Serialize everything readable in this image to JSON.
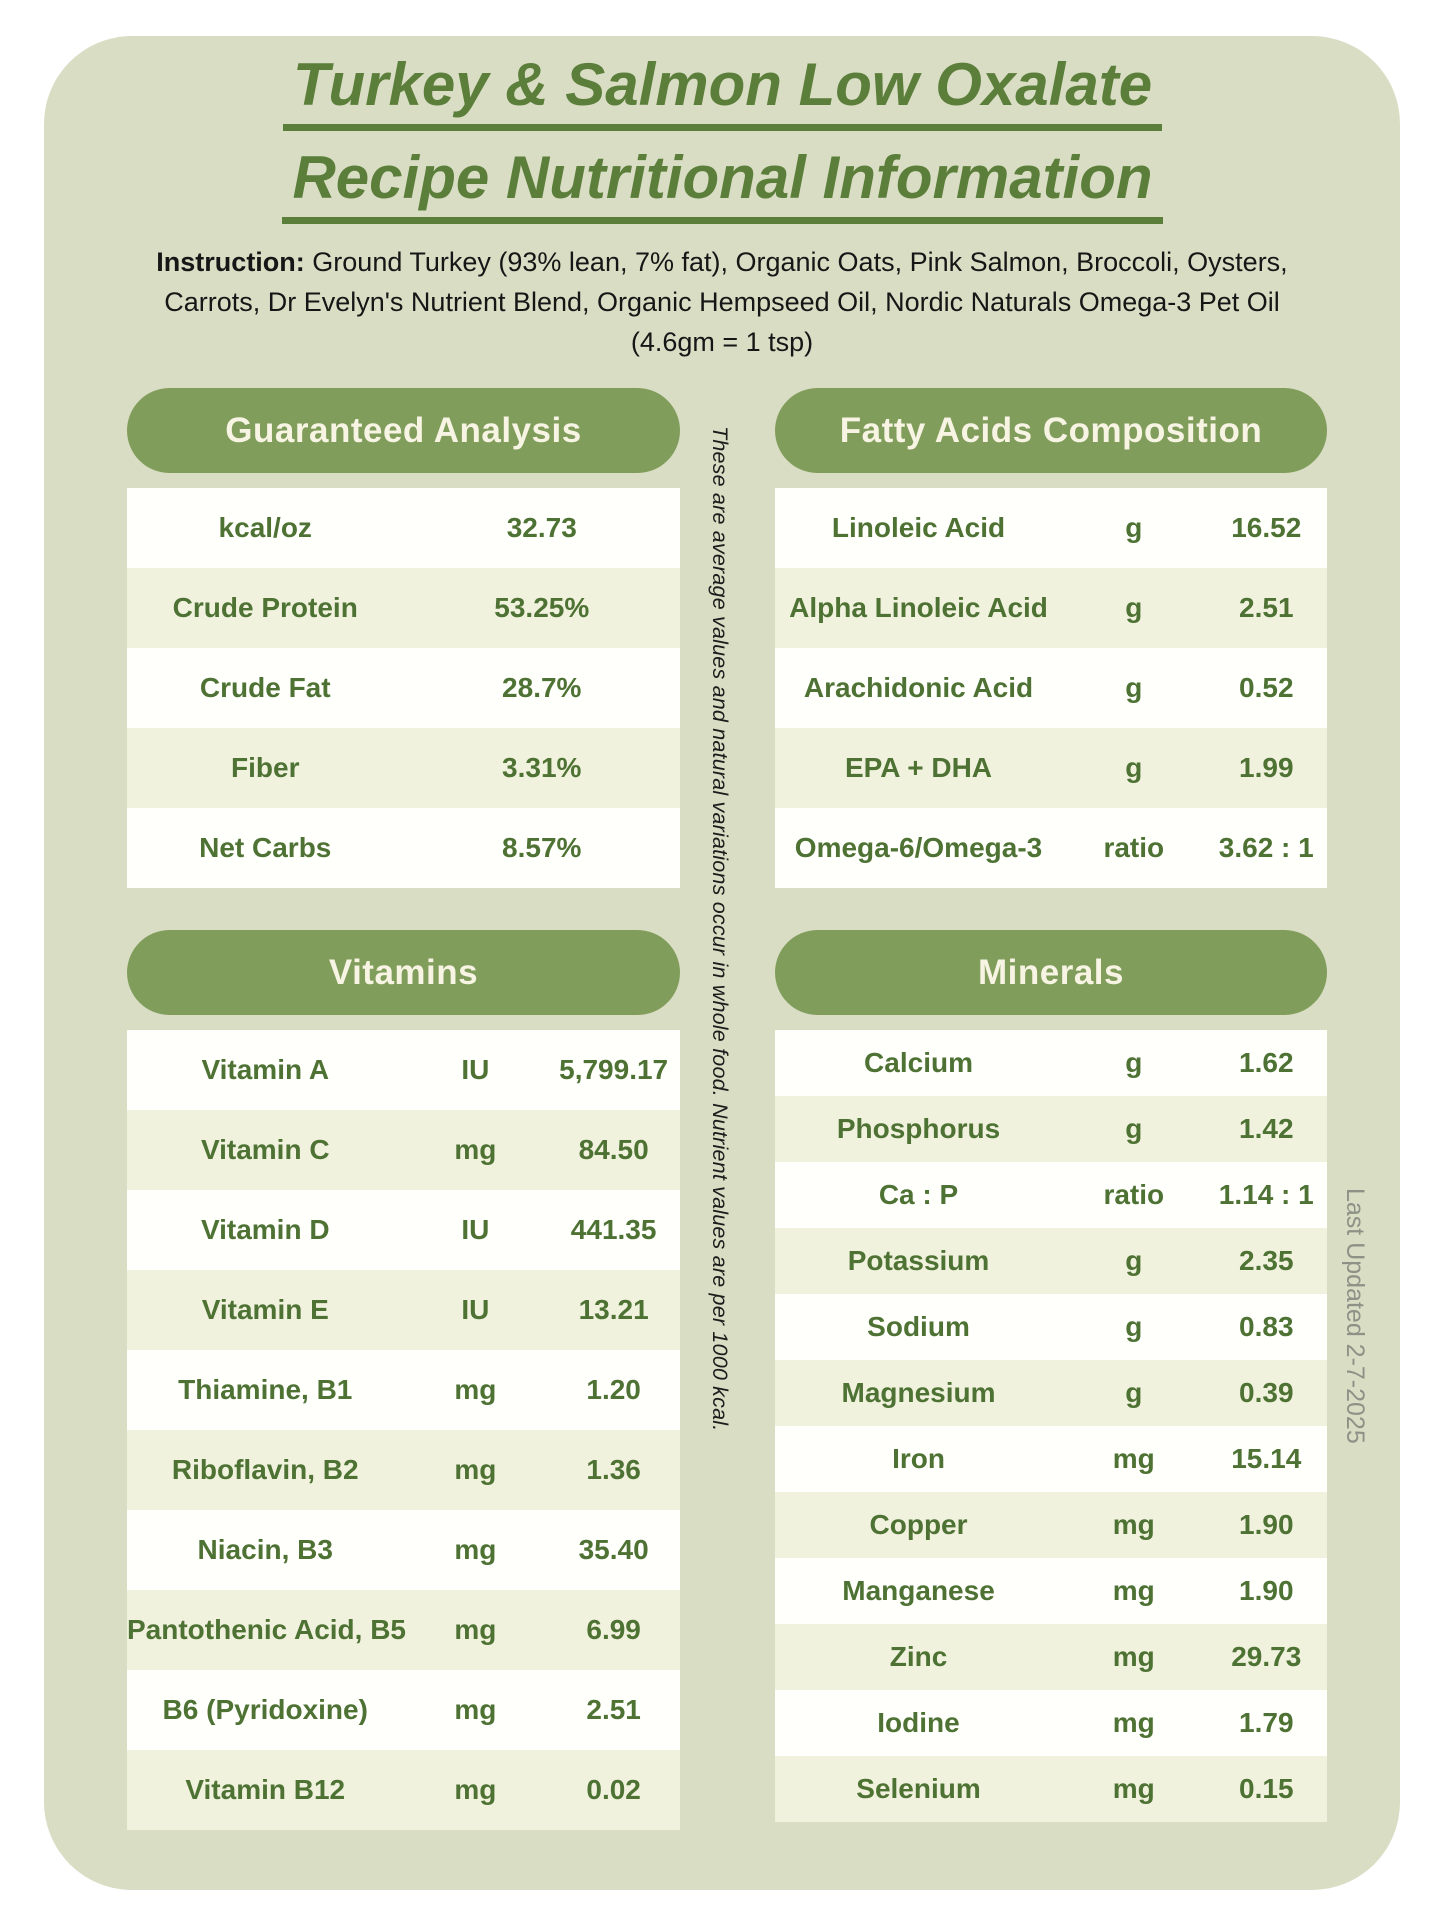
{
  "page": {
    "title_line1": "Turkey & Salmon Low Oxalate",
    "title_line2": "Recipe Nutritional Information",
    "instruction_label": "Instruction:",
    "instruction_text": " Ground Turkey (93% lean, 7% fat), Organic Oats, Pink Salmon, Broccoli, Oysters, Carrots, Dr Evelyn's Nutrient Blend, Organic Hempseed Oil, Nordic Naturals Omega-3 Pet Oil (4.6gm = 1 tsp)",
    "middle_note": "These are average values and natural variations occur in whole food. Nutrient values are per 1000 kcal.",
    "last_updated": "Last Updated 2-7-2025"
  },
  "sections": [
    {
      "id": "guaranteed-analysis",
      "title": "Guaranteed Analysis",
      "rows": [
        [
          "kcal/oz",
          "32.73"
        ],
        [
          "Crude Protein",
          "53.25%"
        ],
        [
          "Crude Fat",
          "28.7%"
        ],
        [
          "Fiber",
          "3.31%"
        ],
        [
          "Net Carbs",
          "8.57%"
        ]
      ]
    },
    {
      "id": "fatty-acids-composition",
      "title": "Fatty Acids Composition",
      "rows": [
        [
          "Linoleic Acid",
          "g",
          "16.52"
        ],
        [
          "Alpha Linoleic Acid",
          "g",
          "2.51"
        ],
        [
          "Arachidonic Acid",
          "g",
          "0.52"
        ],
        [
          "EPA + DHA",
          "g",
          "1.99"
        ],
        [
          "Omega-6/Omega-3",
          "ratio",
          "3.62 : 1"
        ]
      ]
    },
    {
      "id": "vitamins",
      "title": "Vitamins",
      "rows": [
        [
          "Vitamin A",
          "IU",
          "5,799.17"
        ],
        [
          "Vitamin C",
          "mg",
          "84.50"
        ],
        [
          "Vitamin D",
          "IU",
          "441.35"
        ],
        [
          "Vitamin E",
          "IU",
          "13.21"
        ],
        [
          "Thiamine, B1",
          "mg",
          "1.20"
        ],
        [
          "Riboflavin, B2",
          "mg",
          "1.36"
        ],
        [
          "Niacin, B3",
          "mg",
          "35.40"
        ],
        [
          "Pantothenic Acid, B5",
          "mg",
          "6.99"
        ],
        [
          "B6 (Pyridoxine)",
          "mg",
          "2.51"
        ],
        [
          "Vitamin B12",
          "mg",
          "0.02"
        ]
      ]
    },
    {
      "id": "minerals",
      "title": "Minerals",
      "rows": [
        [
          "Calcium",
          "g",
          "1.62"
        ],
        [
          "Phosphorus",
          "g",
          "1.42"
        ],
        [
          "Ca : P",
          "ratio",
          "1.14 : 1"
        ],
        [
          "Potassium",
          "g",
          "2.35"
        ],
        [
          "Sodium",
          "g",
          "0.83"
        ],
        [
          "Magnesium",
          "g",
          "0.39"
        ],
        [
          "Iron",
          "mg",
          "15.14"
        ],
        [
          "Copper",
          "mg",
          "1.90"
        ],
        [
          "Manganese",
          "mg",
          "1.90"
        ],
        [
          "Zinc",
          "mg",
          "29.73"
        ],
        [
          "Iodine",
          "mg",
          "1.79"
        ],
        [
          "Selenium",
          "mg",
          "0.15"
        ]
      ]
    }
  ],
  "colors": {
    "card_background": "#d9ddc4",
    "pill_green": "#819d5c",
    "pill_text": "#f7f4e3",
    "table_text_green": "#4e7233",
    "title_green": "#5b7e3a",
    "row_white": "#fffffb",
    "row_cream": "#f0f2dd",
    "note_gray": "#8e9186",
    "instruction_ink": "#161616"
  }
}
